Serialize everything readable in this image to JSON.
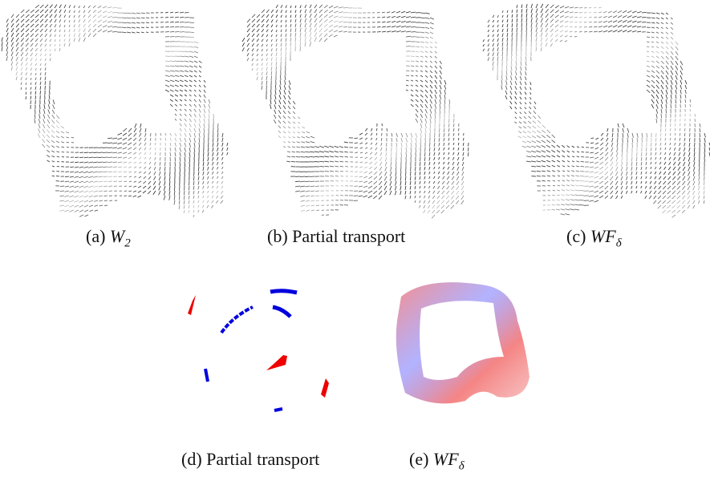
{
  "captions": [
    {
      "label": "(a)",
      "math": "W",
      "sub": "2"
    },
    {
      "label": "(b)",
      "text": "Partial transport"
    },
    {
      "label": "(c)",
      "math": "WF",
      "sub": "δ"
    },
    {
      "label": "(d)",
      "text": "Partial transport"
    },
    {
      "label": "(e)",
      "math": "WF",
      "sub": "δ"
    }
  ]
}
